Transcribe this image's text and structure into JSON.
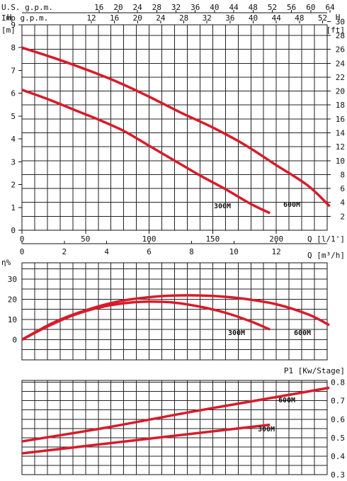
{
  "chart_data": [
    {
      "type": "line",
      "panel": "head",
      "x_label": "Q [l/1']",
      "x_ticks": [
        0,
        50,
        100,
        150,
        200
      ],
      "xlim": [
        0,
        240
      ],
      "y_left_label": "H [m]",
      "y_left_axis_letter": "H",
      "y_left_unit": "[m]",
      "y_left_ticks": [
        0,
        1,
        2,
        3,
        4,
        5,
        6,
        7,
        8,
        9
      ],
      "ylim": [
        0,
        9
      ],
      "y_right_label": "H [ft]",
      "y_right_axis_letter": "H",
      "y_right_unit": "[ft]",
      "y_right_ticks": [
        2,
        4,
        6,
        8,
        10,
        12,
        14,
        16,
        18,
        20,
        22,
        24,
        26,
        28,
        30
      ],
      "y_right_lim_ft": [
        0,
        29.53
      ],
      "top_axis_1": {
        "label": "U.S. g.p.m.",
        "ticks": [
          16,
          20,
          24,
          28,
          32,
          36,
          40,
          44,
          48,
          52,
          56,
          60,
          64
        ],
        "gal_per_l": 0.264172
      },
      "top_axis_2": {
        "label": "Imp g.p.m.",
        "ticks": [
          12,
          16,
          20,
          24,
          28,
          32,
          36,
          40,
          44,
          48,
          52
        ],
        "gal_per_l": 0.219969
      },
      "grid": true,
      "series": [
        {
          "name": "300M",
          "x": [
            0,
            20,
            40,
            60,
            80,
            100,
            120,
            140,
            160,
            180,
            195
          ],
          "y": [
            6.15,
            5.75,
            5.3,
            4.85,
            4.35,
            3.7,
            3.05,
            2.4,
            1.8,
            1.15,
            0.75
          ]
        },
        {
          "name": "600M",
          "x": [
            0,
            25,
            50,
            75,
            100,
            125,
            150,
            175,
            200,
            225,
            242
          ],
          "y": [
            8.0,
            7.55,
            7.05,
            6.5,
            5.85,
            5.15,
            4.5,
            3.75,
            2.85,
            1.95,
            1.05
          ]
        }
      ]
    },
    {
      "type": "line",
      "panel": "efficiency",
      "x_label": "Q [m³/h]",
      "x_ticks": [
        0,
        2,
        4,
        6,
        8,
        10,
        12
      ],
      "xlim": [
        0,
        14.4
      ],
      "y_label": "η%",
      "y_ticks": [
        0,
        10,
        20,
        30
      ],
      "ylim": [
        -10,
        38
      ],
      "grid": true,
      "series": [
        {
          "name": "300M",
          "x": [
            0,
            1.2,
            2.4,
            3.6,
            4.8,
            6.0,
            7.2,
            8.4,
            9.6,
            10.8,
            11.7
          ],
          "y": [
            0,
            6.5,
            12.0,
            15.8,
            18.0,
            18.8,
            18.3,
            16.3,
            13.3,
            9.0,
            5.0
          ]
        },
        {
          "name": "600M",
          "x": [
            0,
            1.5,
            3.0,
            4.5,
            6.0,
            7.5,
            9.0,
            10.5,
            12.0,
            13.5,
            14.5
          ],
          "y": [
            0,
            8.5,
            14.5,
            18.8,
            21.0,
            21.9,
            21.6,
            20.2,
            17.5,
            12.5,
            7.2
          ]
        }
      ]
    },
    {
      "type": "line",
      "panel": "power",
      "y_label": "P1 [Kw/Stage]",
      "y_ticks": [
        0.3,
        0.4,
        0.5,
        0.6,
        0.7,
        0.8
      ],
      "ylim": [
        0.3,
        0.81
      ],
      "xlim": [
        0,
        14.4
      ],
      "grid": true,
      "series": [
        {
          "name": "300M",
          "x": [
            0,
            11.7
          ],
          "y": [
            0.415,
            0.57
          ]
        },
        {
          "name": "600M",
          "x": [
            0,
            4.0,
            8.0,
            12.0,
            14.5
          ],
          "y": [
            0.48,
            0.555,
            0.64,
            0.72,
            0.77
          ]
        }
      ]
    }
  ]
}
